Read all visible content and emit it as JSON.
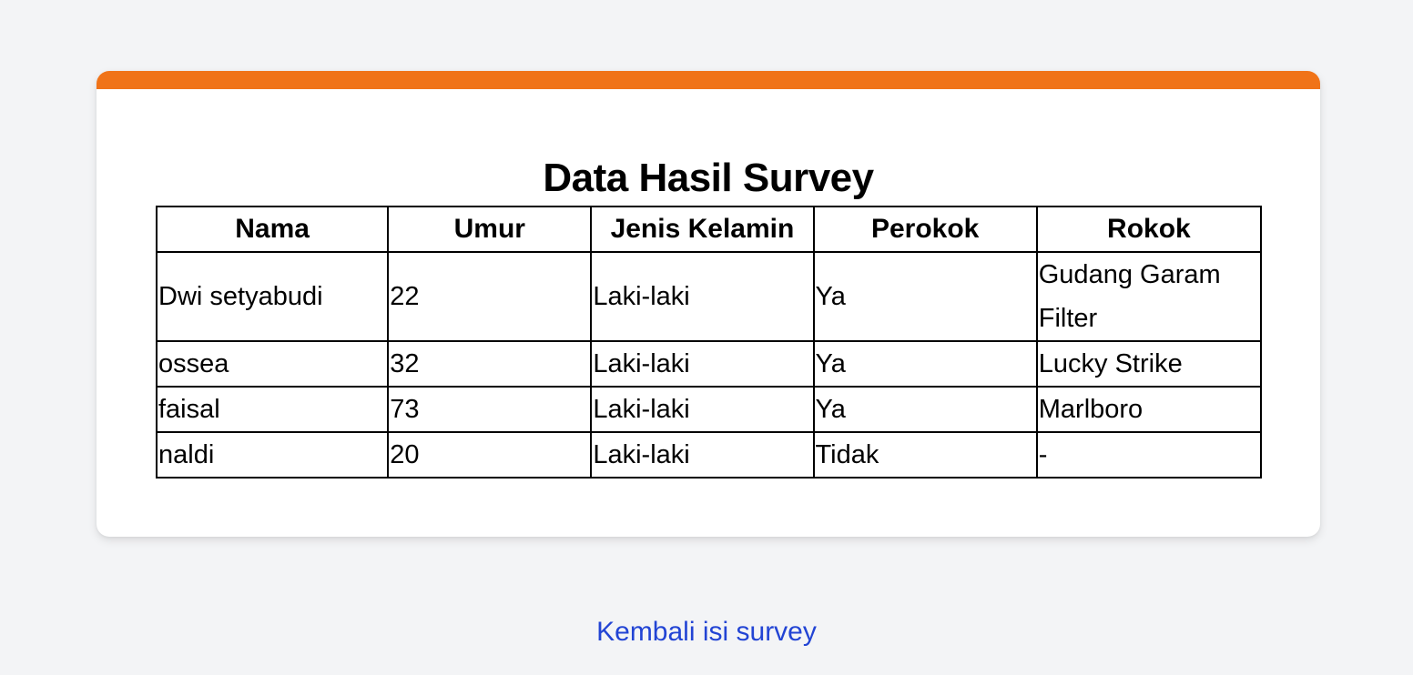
{
  "page": {
    "title": "Data Hasil Survey",
    "back_link_text": "Kembali isi survey"
  },
  "colors": {
    "accent": "#f07318",
    "background": "#f3f4f6",
    "card": "#ffffff",
    "link": "#2244d4"
  },
  "table": {
    "headers": [
      "Nama",
      "Umur",
      "Jenis Kelamin",
      "Perokok",
      "Rokok"
    ],
    "rows": [
      [
        "Dwi setyabudi",
        "22",
        "Laki-laki",
        "Ya",
        "Gudang Garam Filter"
      ],
      [
        "ossea",
        "32",
        "Laki-laki",
        "Ya",
        "Lucky Strike"
      ],
      [
        "faisal",
        "73",
        "Laki-laki",
        "Ya",
        "Marlboro"
      ],
      [
        "naldi",
        "20",
        "Laki-laki",
        "Tidak",
        "-"
      ]
    ]
  }
}
